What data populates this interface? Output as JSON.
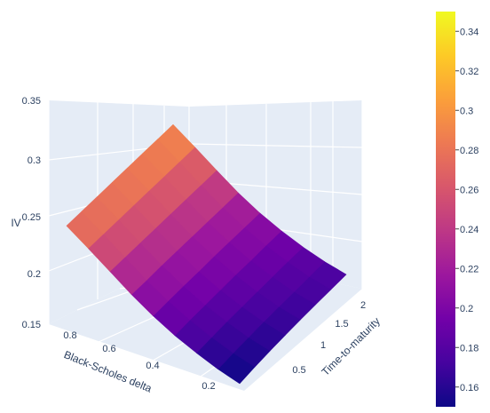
{
  "chart_data": {
    "type": "surface",
    "colorscale": "plasma",
    "z_axis": {
      "title": "IV",
      "range": [
        0.15,
        0.35
      ],
      "ticks": [
        "0.15",
        "0.2",
        "0.25",
        "0.3",
        "0.35"
      ]
    },
    "x_axis": {
      "title": "Black-Scholes delta",
      "range": [
        0.1,
        0.9
      ],
      "ticks": [
        "0.2",
        "0.4",
        "0.6",
        "0.8"
      ]
    },
    "y_axis": {
      "title": "Time-to-maturity",
      "range": [
        0.25,
        2.0
      ],
      "ticks": [
        "0.5",
        "1",
        "1.5",
        "2"
      ]
    },
    "surface": {
      "delta": [
        0.1,
        0.2,
        0.3,
        0.4,
        0.5,
        0.6,
        0.7,
        0.8,
        0.9
      ],
      "time_to_maturity": [
        0.25,
        0.5,
        0.75,
        1.0,
        1.25,
        1.5,
        1.75,
        2.0
      ],
      "iv_grid": [
        [
          0.147,
          0.153,
          0.158,
          0.162,
          0.166,
          0.169,
          0.172,
          0.175
        ],
        [
          0.155,
          0.16,
          0.164,
          0.168,
          0.171,
          0.174,
          0.177,
          0.18
        ],
        [
          0.166,
          0.17,
          0.174,
          0.177,
          0.18,
          0.183,
          0.186,
          0.188
        ],
        [
          0.179,
          0.183,
          0.186,
          0.189,
          0.192,
          0.194,
          0.197,
          0.199
        ],
        [
          0.196,
          0.199,
          0.202,
          0.204,
          0.207,
          0.209,
          0.211,
          0.213
        ],
        [
          0.216,
          0.218,
          0.221,
          0.223,
          0.225,
          0.227,
          0.229,
          0.231
        ],
        [
          0.239,
          0.241,
          0.243,
          0.245,
          0.247,
          0.249,
          0.251,
          0.253
        ],
        [
          0.262,
          0.264,
          0.266,
          0.268,
          0.27,
          0.272,
          0.274,
          0.276
        ],
        [
          0.284,
          0.286,
          0.288,
          0.29,
          0.292,
          0.294,
          0.296,
          0.298
        ]
      ]
    },
    "colorbar": {
      "range": [
        0.15,
        0.35
      ],
      "ticks": [
        "0.16",
        "0.18",
        "0.2",
        "0.22",
        "0.24",
        "0.26",
        "0.28",
        "0.3",
        "0.32",
        "0.34"
      ]
    },
    "grid": true,
    "legend": "colorbar-right"
  }
}
